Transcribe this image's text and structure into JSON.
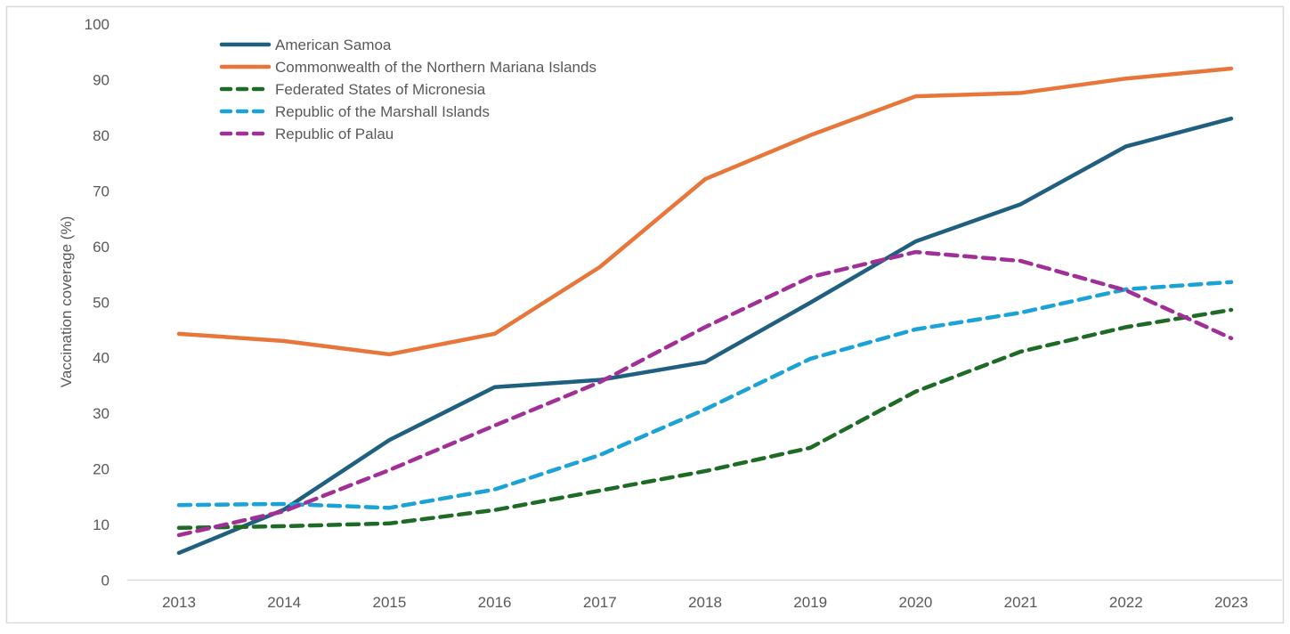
{
  "chart_data": {
    "type": "line",
    "title": "",
    "xlabel": "",
    "ylabel": "Vaccination coverage (%)",
    "ylim": [
      0,
      100
    ],
    "yticks": [
      0,
      10,
      20,
      30,
      40,
      50,
      60,
      70,
      80,
      90,
      100
    ],
    "grid": false,
    "legend_position": "top-left",
    "categories": [
      "2013",
      "2014",
      "2015",
      "2016",
      "2017",
      "2018",
      "2019",
      "2020",
      "2021",
      "2022",
      "2023"
    ],
    "series": [
      {
        "name": "American Samoa",
        "color": "#1f5f7f",
        "dash": "solid",
        "values": [
          4.9,
          12.7,
          25.2,
          34.7,
          36.0,
          39.2,
          49.9,
          60.9,
          67.6,
          78.0,
          83.0
        ]
      },
      {
        "name": "Commonwealth of the Northern Mariana Islands",
        "color": "#e8763a",
        "dash": "solid",
        "values": [
          44.3,
          43.0,
          40.6,
          44.3,
          56.3,
          72.1,
          80.0,
          87.0,
          87.6,
          90.2,
          92.0
        ]
      },
      {
        "name": "Federated States of Micronesia",
        "color": "#1e6b25",
        "dash": "dashed",
        "values": [
          9.4,
          9.7,
          10.2,
          12.6,
          16.1,
          19.6,
          23.8,
          33.9,
          41.1,
          45.5,
          48.6
        ]
      },
      {
        "name": "Republic of the Marshall Islands",
        "color": "#1ba3d8",
        "dash": "dashed",
        "values": [
          13.5,
          13.7,
          13.0,
          16.3,
          22.5,
          30.7,
          39.8,
          45.1,
          48.1,
          52.3,
          53.6
        ]
      },
      {
        "name": "Republic of Palau",
        "color": "#a02f97",
        "dash": "dashed",
        "values": [
          8.1,
          12.4,
          19.8,
          27.8,
          35.6,
          45.5,
          54.5,
          59.0,
          57.4,
          52.1,
          43.5
        ]
      }
    ]
  }
}
